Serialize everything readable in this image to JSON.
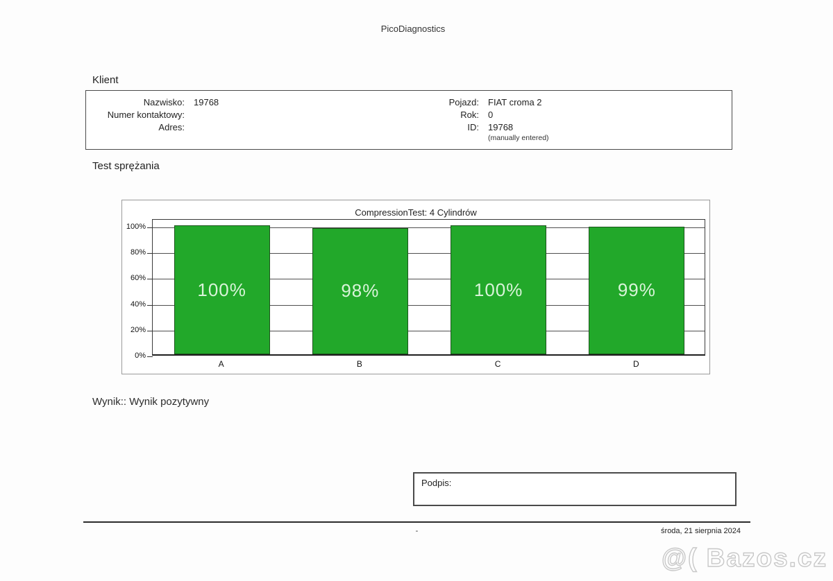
{
  "page": {
    "title": "PicoDiagnostics"
  },
  "client": {
    "heading": "Klient",
    "fields_left": [
      {
        "label": "Nazwisko:",
        "value": "19768"
      },
      {
        "label": "Numer kontaktowy:",
        "value": ""
      },
      {
        "label": "Adres:",
        "value": ""
      }
    ],
    "fields_right": [
      {
        "label": "Pojazd:",
        "value": "FIAT croma 2"
      },
      {
        "label": "Rok:",
        "value": "0"
      },
      {
        "label": "ID:",
        "value": "19768"
      }
    ],
    "note": "(manually entered)"
  },
  "test": {
    "heading": "Test sprężania"
  },
  "chart_data": {
    "type": "bar",
    "title": "CompressionTest: 4 Cylindrów",
    "categories": [
      "A",
      "B",
      "C",
      "D"
    ],
    "values": [
      100,
      98,
      100,
      99
    ],
    "value_labels": [
      "100%",
      "98%",
      "100%",
      "99%"
    ],
    "xlabel": "",
    "ylabel": "",
    "ylim": [
      0,
      105
    ],
    "yticks": [
      0,
      20,
      40,
      60,
      80,
      100
    ],
    "ytick_labels": [
      "0%",
      "20%",
      "40%",
      "60%",
      "80%",
      "100%"
    ],
    "grid": true,
    "legend": false,
    "bar_color": "#22a82a",
    "bar_border_color": "#1c531c",
    "bar_label_color": "#d9f4d9"
  },
  "result": {
    "label": "Wynik::",
    "value": "Wynik pozytywny"
  },
  "signature": {
    "label": "Podpis:"
  },
  "footer": {
    "center": "-",
    "date": "środa, 21 sierpnia 2024"
  },
  "watermark": {
    "text": "@( Bazos.cz"
  }
}
